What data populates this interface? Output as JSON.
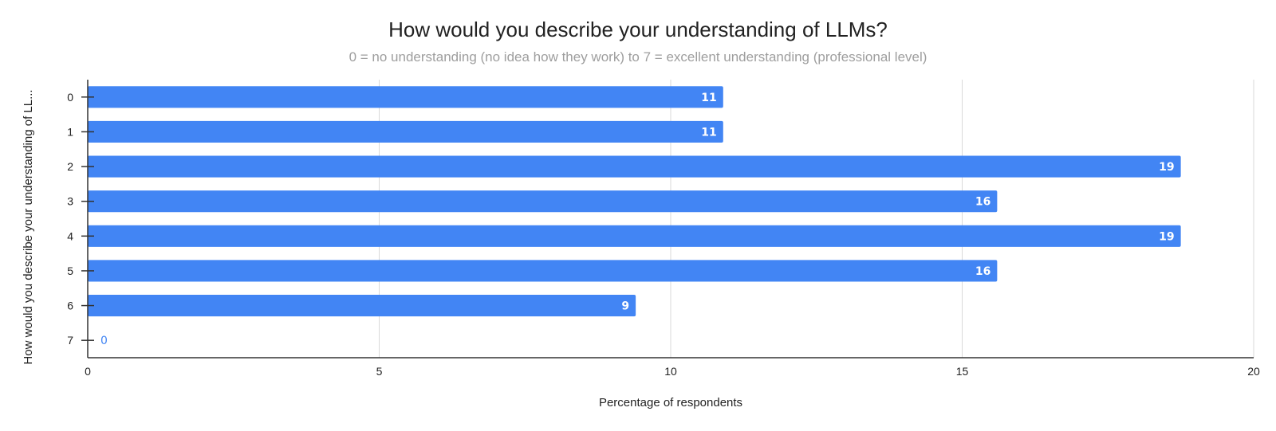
{
  "chart_data": {
    "type": "bar",
    "orientation": "horizontal",
    "title": "How would you describe your understanding of LLMs?",
    "subtitle": "0 = no understanding (no idea how they work) to 7 = excellent understanding (professional level)",
    "xlabel": "Percentage of respondents",
    "ylabel": "How would you describe your understanding of LL...",
    "categories": [
      "0",
      "1",
      "2",
      "3",
      "4",
      "5",
      "6",
      "7"
    ],
    "values": [
      10.9,
      10.9,
      18.75,
      15.6,
      18.75,
      15.6,
      9.4,
      0
    ],
    "data_labels": [
      "11",
      "11",
      "19",
      "16",
      "19",
      "16",
      "9",
      "0"
    ],
    "xlim": [
      0,
      20
    ],
    "xticks": [
      "0",
      "5",
      "10",
      "15",
      "20"
    ],
    "grid": "vertical",
    "legend": "none",
    "colors": {
      "bar": "#4285f4",
      "grid": "#d9d9d9",
      "axis": "#333333"
    }
  }
}
